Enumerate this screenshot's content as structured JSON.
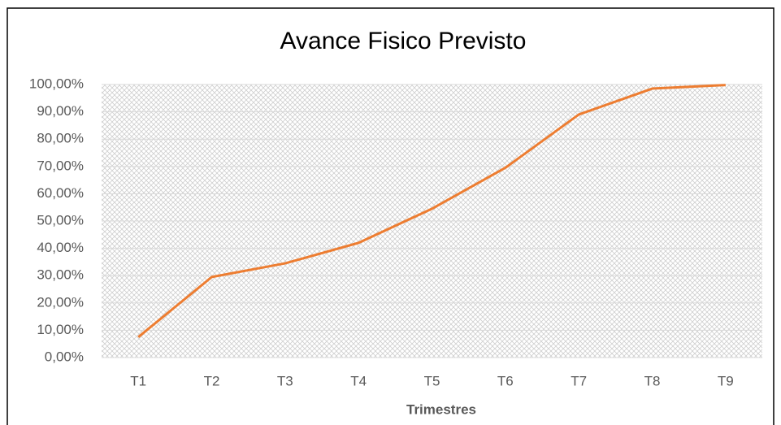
{
  "chart_data": {
    "type": "line",
    "title": "Avance Fisico Previsto",
    "x_label": "Trimestres",
    "categories": [
      "T1",
      "T2",
      "T3",
      "T4",
      "T5",
      "T6",
      "T7",
      "T8",
      "T9"
    ],
    "series": [
      {
        "name": "Avance Fisico Previsto",
        "color": "#ed7d31",
        "values": [
          7.5,
          29.5,
          34.5,
          42,
          54.5,
          69.5,
          89,
          98.5,
          99.8
        ]
      }
    ],
    "ylim": [
      0,
      100
    ],
    "yticks": [
      {
        "value": 0,
        "label": "0,00%"
      },
      {
        "value": 10,
        "label": "10,00%"
      },
      {
        "value": 20,
        "label": "20,00%"
      },
      {
        "value": 30,
        "label": "30,00%"
      },
      {
        "value": 40,
        "label": "40,00%"
      },
      {
        "value": 50,
        "label": "50,00%"
      },
      {
        "value": 60,
        "label": "60,00%"
      },
      {
        "value": 70,
        "label": "70,00%"
      },
      {
        "value": 80,
        "label": "80,00%"
      },
      {
        "value": 90,
        "label": "90,00%"
      },
      {
        "value": 100,
        "label": "100,00%"
      }
    ],
    "grid": true
  }
}
